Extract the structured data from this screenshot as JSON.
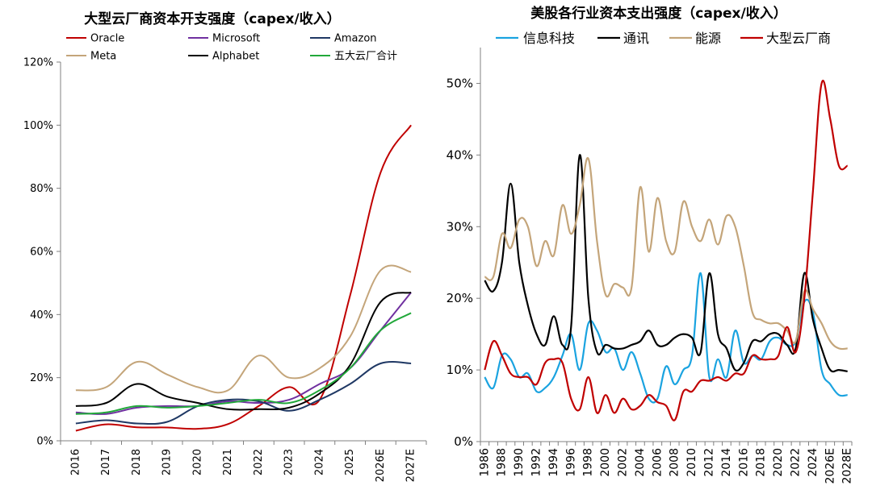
{
  "chart_data": [
    {
      "type": "line",
      "title": "大型云厂商资本开支强度（capex/收入）",
      "xlabel": "",
      "ylabel": "",
      "categories": [
        "2016",
        "2017",
        "2018",
        "2019",
        "2020",
        "2021",
        "2022",
        "2023",
        "2024",
        "2025",
        "2026E",
        "2027E"
      ],
      "ylim": [
        0,
        120
      ],
      "y_ticks": [
        "0%",
        "20%",
        "40%",
        "60%",
        "80%",
        "100%",
        "120%"
      ],
      "grid": false,
      "legend_position": "top",
      "series": [
        {
          "name": "Oracle",
          "color": "#c00000",
          "values": [
            3.2,
            5.2,
            4.3,
            4.2,
            3.8,
            5.3,
            11.0,
            17.0,
            13.0,
            46.0,
            85.0,
            100.0
          ]
        },
        {
          "name": "Microsoft",
          "color": "#7030a0",
          "values": [
            9.0,
            8.5,
            10.5,
            11.0,
            11.0,
            12.5,
            12.0,
            13.0,
            18.0,
            23.0,
            35.0,
            47.0
          ]
        },
        {
          "name": "Amazon",
          "color": "#1f3864",
          "values": [
            5.5,
            6.5,
            5.5,
            6.0,
            11.0,
            13.0,
            12.5,
            9.5,
            13.0,
            18.0,
            24.5,
            24.5
          ]
        },
        {
          "name": "Meta",
          "color": "#c4a57a",
          "values": [
            16.0,
            17.0,
            25.0,
            21.0,
            17.0,
            16.0,
            27.0,
            20.0,
            23.0,
            33.0,
            54.0,
            53.5
          ]
        },
        {
          "name": "Alphabet",
          "color": "#000000",
          "values": [
            11.0,
            12.0,
            18.0,
            14.0,
            12.0,
            10.0,
            10.0,
            10.5,
            15.0,
            24.0,
            44.0,
            47.0
          ]
        },
        {
          "name": "五大云厂合计",
          "color": "#21a83a",
          "values": [
            8.5,
            9.0,
            11.0,
            10.5,
            11.0,
            12.0,
            13.0,
            12.0,
            16.0,
            23.0,
            35.0,
            40.5
          ]
        }
      ]
    },
    {
      "type": "line",
      "title": "美股各行业资本支出强度（capex/收入）",
      "xlabel": "",
      "ylabel": "",
      "categories": [
        "1986",
        "1987",
        "1988",
        "1989",
        "1990",
        "1991",
        "1992",
        "1993",
        "1994",
        "1995",
        "1996",
        "1997",
        "1998",
        "1999",
        "2000",
        "2001",
        "2002",
        "2003",
        "2004",
        "2005",
        "2006",
        "2007",
        "2008",
        "2009",
        "2010",
        "2011",
        "2012",
        "2013",
        "2014",
        "2015",
        "2016",
        "2017",
        "2018",
        "2019",
        "2020",
        "2021",
        "2022",
        "2023",
        "2024",
        "2025",
        "2026E",
        "2027E",
        "2028E"
      ],
      "x_tick_labels": [
        "1986",
        "1988",
        "1990",
        "1992",
        "1994",
        "1996",
        "1998",
        "2000",
        "2002",
        "2004",
        "2006",
        "2008",
        "2010",
        "2012",
        "2014",
        "2016",
        "2018",
        "2020",
        "2022",
        "2024",
        "2026E",
        "2028E"
      ],
      "ylim": [
        0,
        55
      ],
      "y_ticks": [
        "0%",
        "10%",
        "20%",
        "30%",
        "40%",
        "50%"
      ],
      "grid": false,
      "legend_position": "top",
      "series": [
        {
          "name": "信息科技",
          "color": "#1aa3e0",
          "values": [
            9.0,
            7.5,
            12.0,
            11.5,
            9.0,
            9.5,
            7.0,
            7.5,
            9.0,
            12.0,
            15.0,
            10.0,
            16.5,
            15.5,
            12.5,
            13.0,
            10.0,
            12.5,
            9.5,
            6.0,
            6.0,
            10.5,
            8.0,
            10.0,
            12.0,
            23.5,
            9.0,
            11.5,
            9.0,
            15.5,
            11.0,
            12.0,
            11.5,
            14.0,
            14.5,
            13.5,
            14.0,
            19.5,
            18.0,
            10.0,
            8.0,
            6.5,
            6.5
          ]
        },
        {
          "name": "通讯",
          "color": "#000000",
          "values": [
            22.5,
            21.0,
            25.0,
            36.0,
            25.0,
            19.0,
            15.0,
            13.5,
            17.5,
            13.5,
            16.0,
            40.0,
            20.0,
            12.5,
            13.5,
            13.0,
            13.0,
            13.5,
            14.0,
            15.5,
            13.5,
            13.5,
            14.5,
            15.0,
            14.5,
            12.5,
            23.5,
            15.0,
            13.0,
            10.0,
            11.0,
            14.0,
            14.0,
            15.0,
            15.0,
            13.5,
            13.0,
            23.5,
            17.0,
            13.0,
            10.0,
            10.0,
            9.8
          ]
        },
        {
          "name": "能源",
          "color": "#c4a57a",
          "values": [
            23.0,
            23.0,
            29.0,
            27.0,
            31.0,
            30.0,
            24.5,
            28.0,
            26.0,
            33.0,
            29.0,
            33.0,
            39.5,
            28.0,
            20.5,
            22.0,
            21.5,
            21.5,
            35.5,
            26.5,
            34.0,
            28.0,
            26.5,
            33.5,
            30.0,
            28.0,
            31.0,
            27.5,
            31.5,
            30.0,
            24.5,
            18.0,
            17.0,
            16.5,
            16.5,
            15.5,
            14.0,
            21.0,
            18.5,
            16.5,
            14.0,
            13.0,
            13.0
          ]
        },
        {
          "name": "大型云厂商",
          "color": "#c00000",
          "values": [
            10.0,
            14.0,
            12.0,
            9.5,
            9.0,
            9.0,
            8.0,
            11.0,
            11.5,
            11.0,
            6.0,
            4.5,
            9.0,
            4.0,
            6.5,
            4.0,
            6.0,
            4.5,
            5.0,
            6.5,
            5.5,
            5.0,
            3.0,
            7.0,
            7.0,
            8.5,
            8.5,
            9.0,
            8.5,
            9.5,
            9.5,
            12.0,
            11.5,
            11.5,
            12.0,
            16.0,
            12.5,
            20.0,
            35.0,
            50.0,
            45.0,
            38.5,
            38.5
          ]
        }
      ]
    }
  ]
}
